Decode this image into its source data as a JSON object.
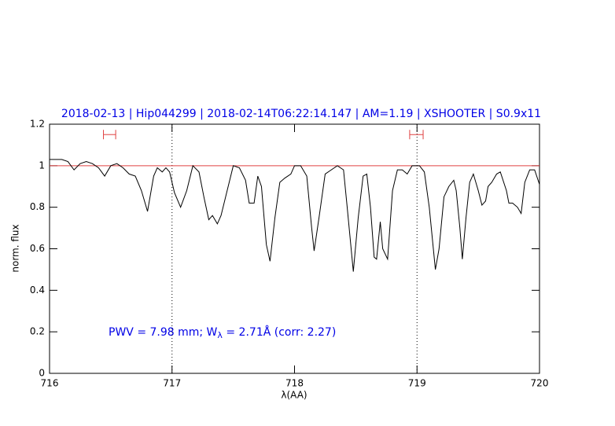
{
  "chart_data": {
    "type": "line",
    "title": "2018-02-13 | Hip044299 | 2018-02-14T06:22:14.147 | AM=1.19 | XSHOOTER | S0.9x11",
    "annotation": [
      "PWV = 7.98 mm; W",
      "λ",
      " = 2.71Å (corr: 2.27)"
    ],
    "xlabel": "λ(AA)",
    "ylabel": "norm. flux",
    "xlim": [
      716,
      720
    ],
    "ylim": [
      0,
      1.2
    ],
    "xticks": [
      716,
      717,
      718,
      719,
      720
    ],
    "yticks": [
      0,
      0.2,
      0.4,
      0.6,
      0.8,
      1,
      1.2
    ],
    "reference_line": 1,
    "reference_color": "#e04040",
    "dotted_lines": [
      717,
      719
    ],
    "windows": [
      [
        716.44,
        716.54
      ],
      [
        718.94,
        719.05
      ]
    ],
    "window_level": 1.15,
    "series": [
      {
        "name": "flux",
        "color": "#000000",
        "x": [
          716.0,
          716.05,
          716.1,
          716.15,
          716.2,
          716.25,
          716.3,
          716.35,
          716.4,
          716.45,
          716.5,
          716.55,
          716.6,
          716.65,
          716.7,
          716.75,
          716.8,
          716.85,
          716.88,
          716.92,
          716.95,
          716.98,
          717.02,
          717.07,
          717.12,
          717.17,
          717.22,
          717.26,
          717.3,
          717.33,
          717.37,
          717.4,
          717.45,
          717.5,
          717.55,
          717.6,
          717.63,
          717.67,
          717.7,
          717.73,
          717.77,
          717.8,
          717.84,
          717.88,
          717.92,
          717.97,
          718.0,
          718.05,
          718.1,
          718.14,
          718.16,
          718.2,
          718.25,
          718.3,
          718.35,
          718.4,
          718.43,
          718.48,
          718.52,
          718.56,
          718.59,
          718.62,
          718.65,
          718.67,
          718.7,
          718.72,
          718.76,
          718.8,
          718.84,
          718.88,
          718.92,
          718.96,
          719.02,
          719.06,
          719.1,
          719.15,
          719.18,
          719.22,
          719.26,
          719.3,
          719.32,
          719.35,
          719.37,
          719.4,
          719.43,
          719.46,
          719.5,
          719.53,
          719.56,
          719.58,
          719.61,
          719.65,
          719.68,
          719.73,
          719.75,
          719.78,
          719.82,
          719.85,
          719.88,
          719.92,
          719.96,
          720.0
        ],
        "values": [
          1.03,
          1.03,
          1.03,
          1.02,
          0.98,
          1.01,
          1.02,
          1.01,
          0.99,
          0.95,
          1.0,
          1.01,
          0.99,
          0.96,
          0.95,
          0.88,
          0.78,
          0.95,
          0.99,
          0.97,
          0.99,
          0.97,
          0.87,
          0.8,
          0.88,
          1.0,
          0.97,
          0.85,
          0.74,
          0.76,
          0.72,
          0.76,
          0.88,
          1.0,
          0.99,
          0.93,
          0.82,
          0.82,
          0.95,
          0.9,
          0.62,
          0.54,
          0.75,
          0.92,
          0.94,
          0.96,
          1.0,
          1.0,
          0.95,
          0.7,
          0.59,
          0.75,
          0.96,
          0.98,
          1.0,
          0.98,
          0.8,
          0.49,
          0.75,
          0.95,
          0.96,
          0.8,
          0.56,
          0.55,
          0.73,
          0.6,
          0.55,
          0.88,
          0.98,
          0.98,
          0.96,
          1.0,
          1.0,
          0.97,
          0.8,
          0.5,
          0.6,
          0.85,
          0.9,
          0.93,
          0.88,
          0.7,
          0.55,
          0.75,
          0.92,
          0.96,
          0.88,
          0.81,
          0.83,
          0.9,
          0.92,
          0.96,
          0.97,
          0.88,
          0.82,
          0.82,
          0.8,
          0.77,
          0.92,
          0.98,
          0.98,
          0.91
        ]
      }
    ]
  }
}
